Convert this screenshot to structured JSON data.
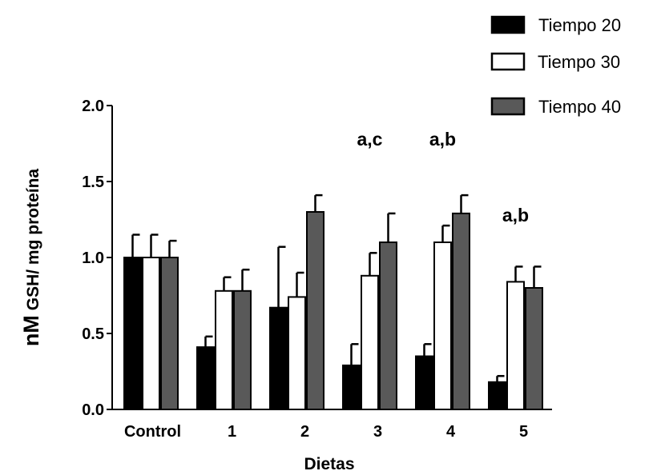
{
  "chart_data": {
    "type": "bar",
    "xlabel": "Dietas",
    "ylabel_prefix": "nM",
    "ylabel_rest": " GSH/ mg proteína",
    "ylim": [
      0,
      2.0
    ],
    "yticks": [
      "0.0",
      "0.5",
      "1.0",
      "1.5",
      "2.0"
    ],
    "categories": [
      "Control",
      "1",
      "2",
      "3",
      "4",
      "5"
    ],
    "series": [
      {
        "name": "Tiempo 20",
        "color": "#000000",
        "values": [
          1.0,
          0.41,
          0.67,
          0.29,
          0.35,
          0.18
        ],
        "errors": [
          0.15,
          0.07,
          0.4,
          0.14,
          0.08,
          0.04
        ]
      },
      {
        "name": "Tiempo 30",
        "color": "#ffffff",
        "values": [
          1.0,
          0.78,
          0.74,
          0.88,
          1.1,
          0.84
        ],
        "errors": [
          0.15,
          0.09,
          0.16,
          0.15,
          0.11,
          0.1
        ]
      },
      {
        "name": "Tiempo 40",
        "color": "#595959",
        "values": [
          1.0,
          0.78,
          1.3,
          1.1,
          1.29,
          0.8
        ],
        "errors": [
          0.11,
          0.14,
          0.11,
          0.19,
          0.12,
          0.14
        ]
      }
    ],
    "annotations": [
      {
        "category": "3",
        "text": "a,c",
        "y": 1.78
      },
      {
        "category": "4",
        "text": "a,b",
        "y": 1.78
      },
      {
        "category": "5",
        "text": "a,b",
        "y": 1.28
      }
    ],
    "legend": "top-right"
  }
}
